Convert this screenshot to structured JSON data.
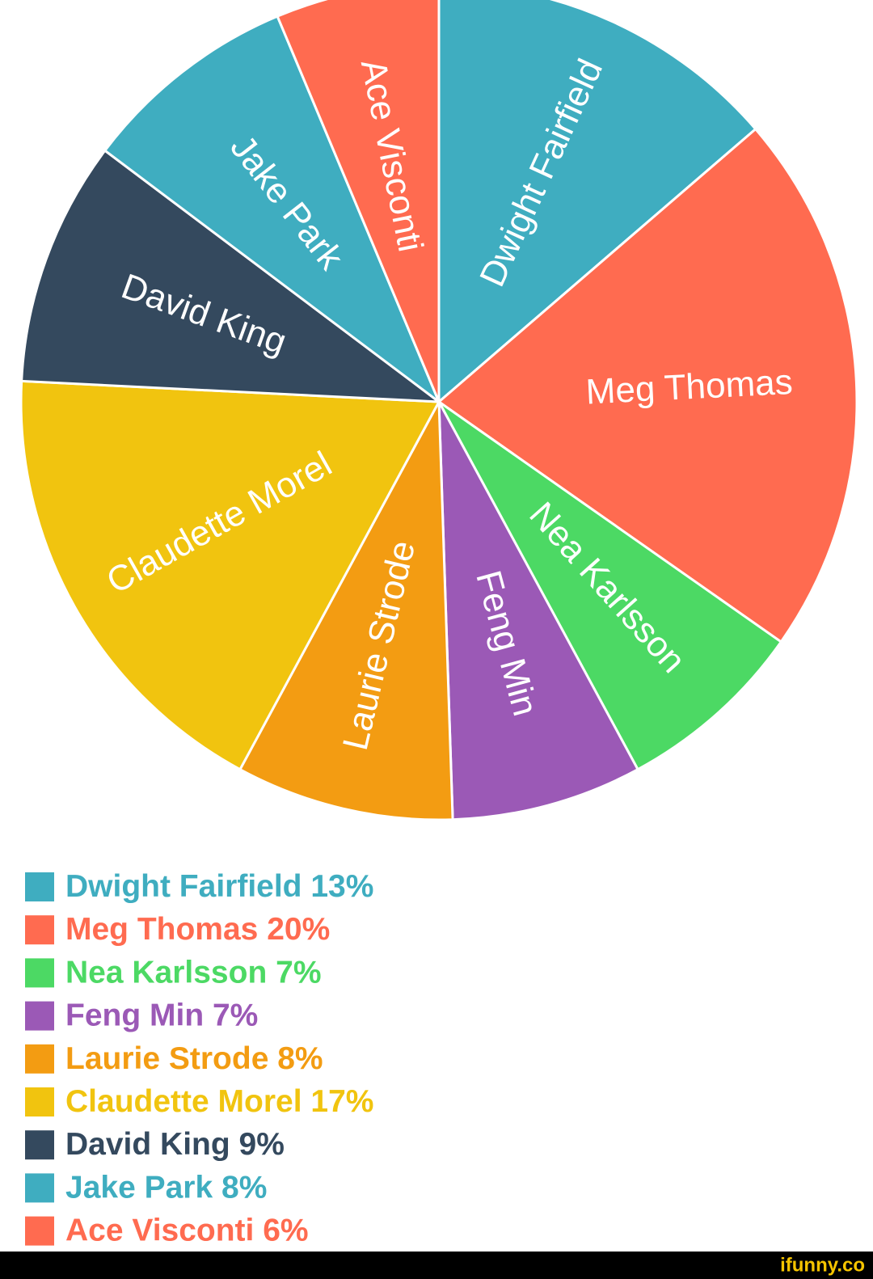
{
  "chart_data": {
    "type": "pie",
    "categories": [
      "Dwight Fairfield",
      "Meg Thomas",
      "Nea Karlsson",
      "Feng Min",
      "Laurie Strode",
      "Claudette Morel",
      "David King",
      "Jake Park",
      "Ace Visconti"
    ],
    "values": [
      13,
      20,
      7,
      7,
      8,
      17,
      9,
      8,
      6
    ],
    "value_labels": [
      "13%",
      "20%",
      "7%",
      "7%",
      "8%",
      "17%",
      "9%",
      "8%",
      "6%"
    ],
    "colors": [
      "#3fadc0",
      "#ff6b50",
      "#4cd964",
      "#9b59b6",
      "#f39c12",
      "#f1c40f",
      "#34495e",
      "#3fadc0",
      "#ff6b50"
    ],
    "legend": "bottom-left"
  },
  "watermark": "ifunny.co"
}
